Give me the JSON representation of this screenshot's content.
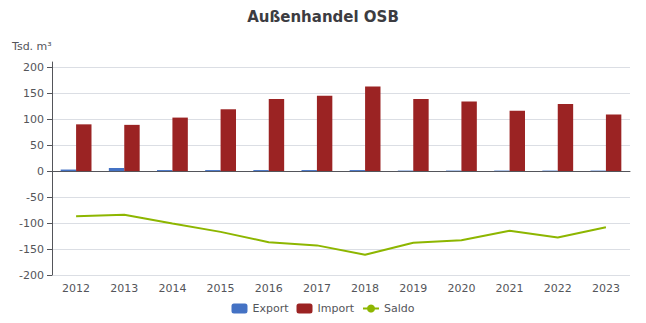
{
  "chart_data": {
    "type": "bar",
    "title": "Außenhandel OSB",
    "ylabel": "Tsd. m³",
    "categories": [
      "2012",
      "2013",
      "2014",
      "2015",
      "2016",
      "2017",
      "2018",
      "2019",
      "2020",
      "2021",
      "2022",
      "2023"
    ],
    "series": [
      {
        "name": "Export",
        "type": "bar",
        "color": "#4472C4",
        "values": [
          3,
          6,
          2,
          2,
          2,
          2,
          2,
          1,
          1,
          1,
          1,
          1
        ]
      },
      {
        "name": "Import",
        "type": "bar",
        "color": "#9B2323",
        "values": [
          90,
          89,
          103,
          119,
          139,
          145,
          163,
          139,
          134,
          116,
          129,
          109
        ]
      },
      {
        "name": "Saldo",
        "type": "line",
        "color": "#8DB600",
        "values": [
          -87,
          -84,
          -101,
          -117,
          -137,
          -143,
          -161,
          -138,
          -133,
          -115,
          -128,
          -108
        ]
      }
    ],
    "ylim": [
      -200,
      210
    ],
    "yticks": [
      -200,
      -150,
      -100,
      -50,
      0,
      50,
      100,
      150,
      200
    ],
    "grid": true,
    "legend": "bottom"
  }
}
